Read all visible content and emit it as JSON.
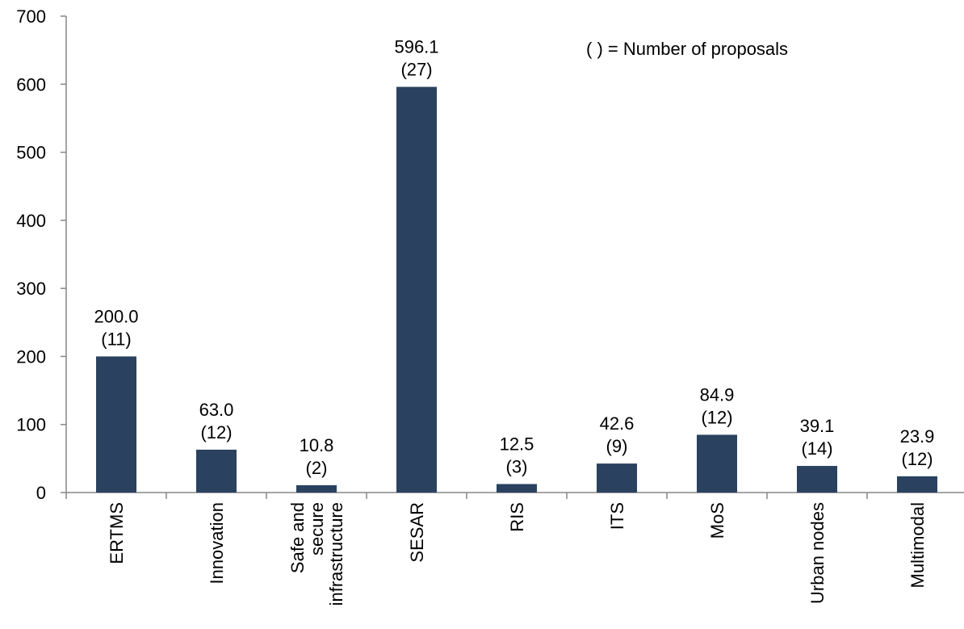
{
  "chart_data": {
    "type": "bar",
    "categories": [
      [
        "ERTMS"
      ],
      [
        "Innovation"
      ],
      [
        "Safe and",
        "secure",
        "infrastructure"
      ],
      [
        "SESAR"
      ],
      [
        "RIS"
      ],
      [
        "ITS"
      ],
      [
        "MoS"
      ],
      [
        "Urban nodes"
      ],
      [
        "Multimodal"
      ]
    ],
    "values": [
      200.0,
      63.0,
      10.8,
      596.1,
      12.5,
      42.6,
      84.9,
      39.1,
      23.9
    ],
    "value_labels": [
      "200.0",
      "63.0",
      "10.8",
      "596.1",
      "12.5",
      "42.6",
      "84.9",
      "39.1",
      "23.9"
    ],
    "proposal_labels": [
      "(11)",
      "(12)",
      "(2)",
      "(27)",
      "(3)",
      "(9)",
      "(12)",
      "(14)",
      "(12)"
    ],
    "note": "( ) = Number  of proposals",
    "ylim": [
      0,
      700
    ],
    "yticks": [
      0,
      100,
      200,
      300,
      400,
      500,
      600,
      700
    ],
    "grid": false,
    "bar_color": "#2a4260",
    "axis_color": "#868686"
  }
}
